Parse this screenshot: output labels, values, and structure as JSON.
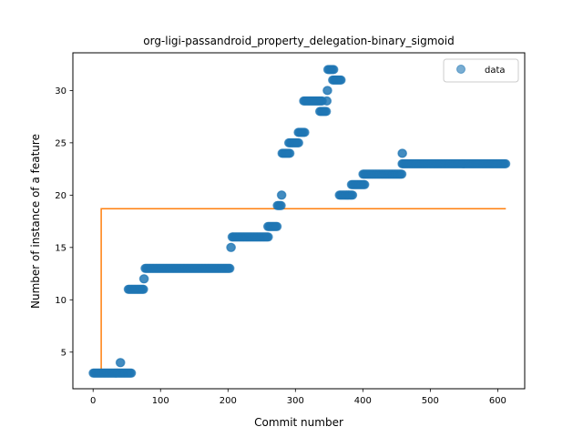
{
  "chart_data": {
    "type": "scatter",
    "title": "org-ligi-passandroid_property_delegation-binary_sigmoid",
    "xlabel": "Commit number",
    "ylabel": "Number of instance of a feature",
    "xlim": [
      -30,
      640
    ],
    "ylim": [
      1.5,
      33.6
    ],
    "xticks": [
      0,
      100,
      200,
      300,
      400,
      500,
      600
    ],
    "yticks": [
      5,
      10,
      15,
      20,
      25,
      30
    ],
    "grid": false,
    "legend": {
      "placement": "top-right",
      "entries": [
        "data"
      ]
    },
    "colors": {
      "data": "#1f77b4",
      "fit": "#ff7f0e"
    },
    "series": [
      {
        "name": "data",
        "kind": "scatter",
        "segments": [
          {
            "x_start": 0,
            "x_end": 57,
            "y": 3
          },
          {
            "x_start": 40,
            "x_end": 41,
            "y": 4
          },
          {
            "x_start": 52,
            "x_end": 75,
            "y": 11
          },
          {
            "x_start": 75,
            "x_end": 76,
            "y": 12
          },
          {
            "x_start": 77,
            "x_end": 203,
            "y": 13
          },
          {
            "x_start": 204,
            "x_end": 205,
            "y": 15
          },
          {
            "x_start": 206,
            "x_end": 260,
            "y": 16
          },
          {
            "x_start": 259,
            "x_end": 273,
            "y": 17
          },
          {
            "x_start": 273,
            "x_end": 279,
            "y": 19
          },
          {
            "x_start": 279,
            "x_end": 280,
            "y": 20
          },
          {
            "x_start": 280,
            "x_end": 292,
            "y": 24
          },
          {
            "x_start": 290,
            "x_end": 305,
            "y": 25
          },
          {
            "x_start": 304,
            "x_end": 314,
            "y": 26
          },
          {
            "x_start": 312,
            "x_end": 340,
            "y": 29
          },
          {
            "x_start": 336,
            "x_end": 346,
            "y": 28
          },
          {
            "x_start": 346,
            "x_end": 347,
            "y": 29
          },
          {
            "x_start": 347,
            "x_end": 348,
            "y": 30
          },
          {
            "x_start": 348,
            "x_end": 357,
            "y": 32
          },
          {
            "x_start": 355,
            "x_end": 368,
            "y": 31
          },
          {
            "x_start": 365,
            "x_end": 385,
            "y": 20
          },
          {
            "x_start": 383,
            "x_end": 403,
            "y": 21
          },
          {
            "x_start": 400,
            "x_end": 458,
            "y": 22
          },
          {
            "x_start": 458,
            "x_end": 459,
            "y": 24
          },
          {
            "x_start": 458,
            "x_end": 612,
            "y": 23
          }
        ]
      },
      {
        "name": "",
        "kind": "line",
        "points": [
          [
            0,
            3
          ],
          [
            12,
            3
          ],
          [
            12,
            18.7
          ],
          [
            612,
            18.7
          ]
        ]
      }
    ]
  }
}
